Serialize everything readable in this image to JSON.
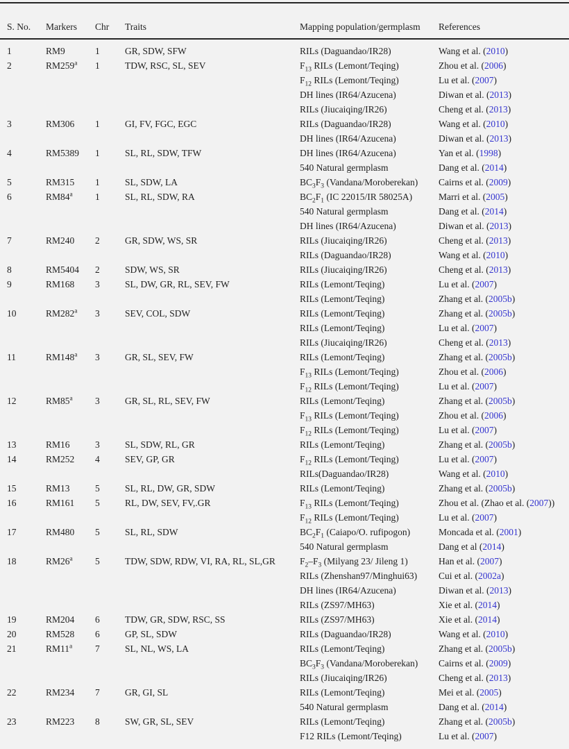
{
  "colors": {
    "background": "#f2f2f2",
    "text": "#1f1f1f",
    "rule": "#262626",
    "link_blue": "#3434cf"
  },
  "table": {
    "columns": [
      "S. No.",
      "Markers",
      "Chr",
      "Traits",
      "Mapping population/germplasm",
      "References"
    ],
    "rows": [
      {
        "sno": "1",
        "marker": "RM9",
        "chr": "1",
        "traits": "GR, SDW, SFW",
        "entries": [
          {
            "pop": "RILs (Daguandao/IR28)",
            "pre": "Wang et al. (",
            "year": "2010",
            "post": ")"
          }
        ]
      },
      {
        "sno": "2",
        "marker": "RM259^a^",
        "chr": "1",
        "traits": "TDW, RSC, SL, SEV",
        "entries": [
          {
            "pop": "F~13~ RILs (Lemont/Teqing)",
            "pre": "Zhou et al. (",
            "year": "2006",
            "post": ")"
          },
          {
            "pop": "F~12~ RILs (Lemont/Teqing)",
            "pre": "Lu et al. (",
            "year": "2007",
            "post": ")"
          },
          {
            "pop": "DH lines (IR64/Azucena)",
            "pre": "Diwan et al. (",
            "year": "2013",
            "post": ")"
          },
          {
            "pop": "RILs (Jiucaiqing/IR26)",
            "pre": "Cheng et al. (",
            "year": "2013",
            "post": ")"
          }
        ]
      },
      {
        "sno": "3",
        "marker": "RM306",
        "chr": "1",
        "traits": "GI, FV, FGC, EGC",
        "entries": [
          {
            "pop": "RILs (Daguandao/IR28)",
            "pre": "Wang et al. (",
            "year": "2010",
            "post": ")"
          },
          {
            "pop": "DH lines (IR64/Azucena)",
            "pre": "Diwan et al. (",
            "year": "2013",
            "post": ")"
          }
        ]
      },
      {
        "sno": "4",
        "marker": "RM5389",
        "chr": "1",
        "traits": "SL, RL, SDW, TFW",
        "entries": [
          {
            "pop": "DH lines (IR64/Azucena)",
            "pre": "Yan et al. (",
            "year": "1998",
            "post": ")"
          },
          {
            "pop": "540 Natural germplasm",
            "pre": "Dang et al. (",
            "year": "2014",
            "post": ")"
          }
        ]
      },
      {
        "sno": "5",
        "marker": "RM315",
        "chr": "1",
        "traits": "SL, SDW, LA",
        "entries": [
          {
            "pop": "BC~3~F~3~ (Vandana/Moroberekan)",
            "pre": "Cairns et al. (",
            "year": "2009",
            "post": ")"
          }
        ]
      },
      {
        "sno": "6",
        "marker": "RM84^a^",
        "chr": "1",
        "traits": "SL, RL, SDW, RA",
        "entries": [
          {
            "pop": "BC~2~F~1~ (IC 22015/IR 58025A)",
            "pre": "Marri et al. (",
            "year": "2005",
            "post": ")"
          },
          {
            "pop": "540 Natural germplasm",
            "pre": "Dang et al. (",
            "year": "2014",
            "post": ")"
          },
          {
            "pop": "DH lines (IR64/Azucena)",
            "pre": "Diwan et al. (",
            "year": "2013",
            "post": ")"
          }
        ]
      },
      {
        "sno": "7",
        "marker": "RM240",
        "chr": "2",
        "traits": "GR, SDW, WS, SR",
        "entries": [
          {
            "pop": "RILs (Jiucaiqing/IR26)",
            "pre": "Cheng et al. (",
            "year": "2013",
            "post": ")"
          },
          {
            "pop": "RILs (Daguandao/IR28)",
            "pre": "Wang et al. (",
            "year": "2010",
            "post": ")"
          }
        ]
      },
      {
        "sno": "8",
        "marker": "RM5404",
        "chr": "2",
        "traits": "SDW, WS, SR",
        "entries": [
          {
            "pop": "RILs (Jiucaiqing/IR26)",
            "pre": "Cheng et al. (",
            "year": "2013",
            "post": ")"
          }
        ]
      },
      {
        "sno": "9",
        "marker": "RM168",
        "chr": "3",
        "traits": "SL, DW, GR, RL, SEV, FW",
        "entries": [
          {
            "pop": "RILs (Lemont/Teqing)",
            "pre": "Lu et al. (",
            "year": "2007",
            "post": ")"
          },
          {
            "pop": "RILs (Lemont/Teqing)",
            "pre": "Zhang et al. (",
            "year": "2005b",
            "post": ")"
          }
        ]
      },
      {
        "sno": "10",
        "marker": "RM282^a^",
        "chr": "3",
        "traits": "SEV, COL, SDW",
        "entries": [
          {
            "pop": "RILs (Lemont/Teqing)",
            "pre": "Zhang et al. (",
            "year": "2005b",
            "post": ")"
          },
          {
            "pop": "RILs (Lemont/Teqing)",
            "pre": "Lu et al. (",
            "year": "2007",
            "post": ")"
          },
          {
            "pop": "RILs (Jiucaiqing/IR26)",
            "pre": "Cheng et al. (",
            "year": "2013",
            "post": ")"
          }
        ]
      },
      {
        "sno": "11",
        "marker": "RM148^a^",
        "chr": "3",
        "traits": "GR, SL, SEV, FW",
        "entries": [
          {
            "pop": "RILs (Lemont/Teqing)",
            "pre": "Zhang et al. (",
            "year": "2005b",
            "post": ")"
          },
          {
            "pop": "F~13~ RILs (Lemont/Teqing)",
            "pre": "Zhou et al. (",
            "year": "2006",
            "post": ")"
          },
          {
            "pop": "F~12~ RILs (Lemont/Teqing)",
            "pre": "Lu et al. (",
            "year": "2007",
            "post": ")"
          }
        ]
      },
      {
        "sno": "12",
        "marker": "RM85^a^",
        "chr": "3",
        "traits": "GR, SL, RL, SEV, FW",
        "entries": [
          {
            "pop": "RILs (Lemont/Teqing)",
            "pre": "Zhang et al. (",
            "year": "2005b",
            "post": ")"
          },
          {
            "pop": "F~13~ RILs (Lemont/Teqing)",
            "pre": "Zhou et al. (",
            "year": "2006",
            "post": ")"
          },
          {
            "pop": "F~12~ RILs (Lemont/Teqing)",
            "pre": "Lu et al. (",
            "year": "2007",
            "post": ")"
          }
        ]
      },
      {
        "sno": "13",
        "marker": "RM16",
        "chr": "3",
        "traits": "SL, SDW, RL, GR",
        "entries": [
          {
            "pop": "RILs (Lemont/Teqing)",
            "pre": "Zhang et al. (",
            "year": "2005b",
            "post": ")"
          }
        ]
      },
      {
        "sno": "14",
        "marker": "RM252",
        "chr": "4",
        "traits": "SEV, GP, GR",
        "entries": [
          {
            "pop": "F~12~ RILs (Lemont/Teqing)",
            "pre": "Lu et al. (",
            "year": "2007",
            "post": ")"
          },
          {
            "pop": "RILs(Daguandao/IR28)",
            "pre": "Wang et al. (",
            "year": "2010",
            "post": ")"
          }
        ]
      },
      {
        "sno": "15",
        "marker": "RM13",
        "chr": "5",
        "traits": "SL, RL, DW, GR, SDW",
        "entries": [
          {
            "pop": "RILs (Lemont/Teqing)",
            "pre": "Zhang et al. (",
            "year": "2005b",
            "post": ")"
          }
        ]
      },
      {
        "sno": "16",
        "marker": "RM161",
        "chr": "5",
        "traits": "RL, DW, SEV, FV,.GR",
        "entries": [
          {
            "pop": "F~13~ RILs (Lemont/Teqing)",
            "pre": "Zhou et al. (Zhao et al. (",
            "year": "2007",
            "post": "))"
          },
          {
            "pop": "F~12~ RILs (Lemont/Teqing)",
            "pre": "Lu et al. (",
            "year": "2007",
            "post": ")"
          }
        ]
      },
      {
        "sno": "17",
        "marker": "RM480",
        "chr": "5",
        "traits": "SL, RL, SDW",
        "entries": [
          {
            "pop": "BC~2~F~1~ (Caiapo/O. rufipogon)",
            "pre": "Moncada et al. (",
            "year": "2001",
            "post": ")"
          },
          {
            "pop": "540 Natural germplasm",
            "pre": "Dang et al (",
            "year": "2014",
            "post": ")"
          }
        ]
      },
      {
        "sno": "18",
        "marker": "RM26^a^",
        "chr": "5",
        "traits": "TDW, SDW, RDW, VI, RA, RL, SL,GR",
        "entries": [
          {
            "pop": "F~2~–F~3~ (Milyang 23/ Jileng 1)",
            "pre": "Han et al. (",
            "year": "2007",
            "post": ")"
          },
          {
            "pop": "RILs (Zhenshan97/Minghui63)",
            "pre": "Cui et al. (",
            "year": "2002a",
            "post": ")"
          },
          {
            "pop": "DH lines (IR64/Azucena)",
            "pre": "Diwan et al. (",
            "year": "2013",
            "post": ")"
          },
          {
            "pop": "RILs (ZS97/MH63)",
            "pre": "Xie et al. (",
            "year": "2014",
            "post": ")"
          }
        ]
      },
      {
        "sno": "19",
        "marker": "RM204",
        "chr": "6",
        "traits": "TDW, GR, SDW, RSC, SS",
        "entries": [
          {
            "pop": "RILs (ZS97/MH63)",
            "pre": "Xie et al. (",
            "year": "2014",
            "post": ")"
          }
        ]
      },
      {
        "sno": "20",
        "marker": "RM528",
        "chr": "6",
        "traits": "GP, SL, SDW",
        "entries": [
          {
            "pop": "RILs (Daguandao/IR28)",
            "pre": "Wang et al. (",
            "year": "2010",
            "post": ")"
          }
        ]
      },
      {
        "sno": "21",
        "marker": "RM11^a^",
        "chr": "7",
        "traits": "SL, NL, WS, LA",
        "entries": [
          {
            "pop": "RILs (Lemont/Teqing)",
            "pre": "Zhang et al. (",
            "year": "2005b",
            "post": ")"
          },
          {
            "pop": "BC~3~F~3~ (Vandana/Moroberekan)",
            "pre": "Cairns et al. (",
            "year": "2009",
            "post": ")"
          },
          {
            "pop": "RILs (Jiucaiqing/IR26)",
            "pre": "Cheng et al. (",
            "year": "2013",
            "post": ")"
          }
        ]
      },
      {
        "sno": "22",
        "marker": "RM234",
        "chr": "7",
        "traits": "GR, GI, SL",
        "entries": [
          {
            "pop": "RILs (Lemont/Teqing)",
            "pre": "Mei et al. (",
            "year": "2005",
            "post": ")"
          },
          {
            "pop": "540 Natural germplasm",
            "pre": "Dang et al. (",
            "year": "2014",
            "post": ")"
          }
        ]
      },
      {
        "sno": "23",
        "marker": "RM223",
        "chr": "8",
        "traits": "SW, GR, SL, SEV",
        "entries": [
          {
            "pop": "RILs (Lemont/Teqing)",
            "pre": "Zhang et al. (",
            "year": "2005b",
            "post": ")"
          },
          {
            "pop": "F12 RILs (Lemont/Teqing)",
            "pre": "Lu et al. (",
            "year": "2007",
            "post": ")"
          }
        ]
      }
    ]
  }
}
